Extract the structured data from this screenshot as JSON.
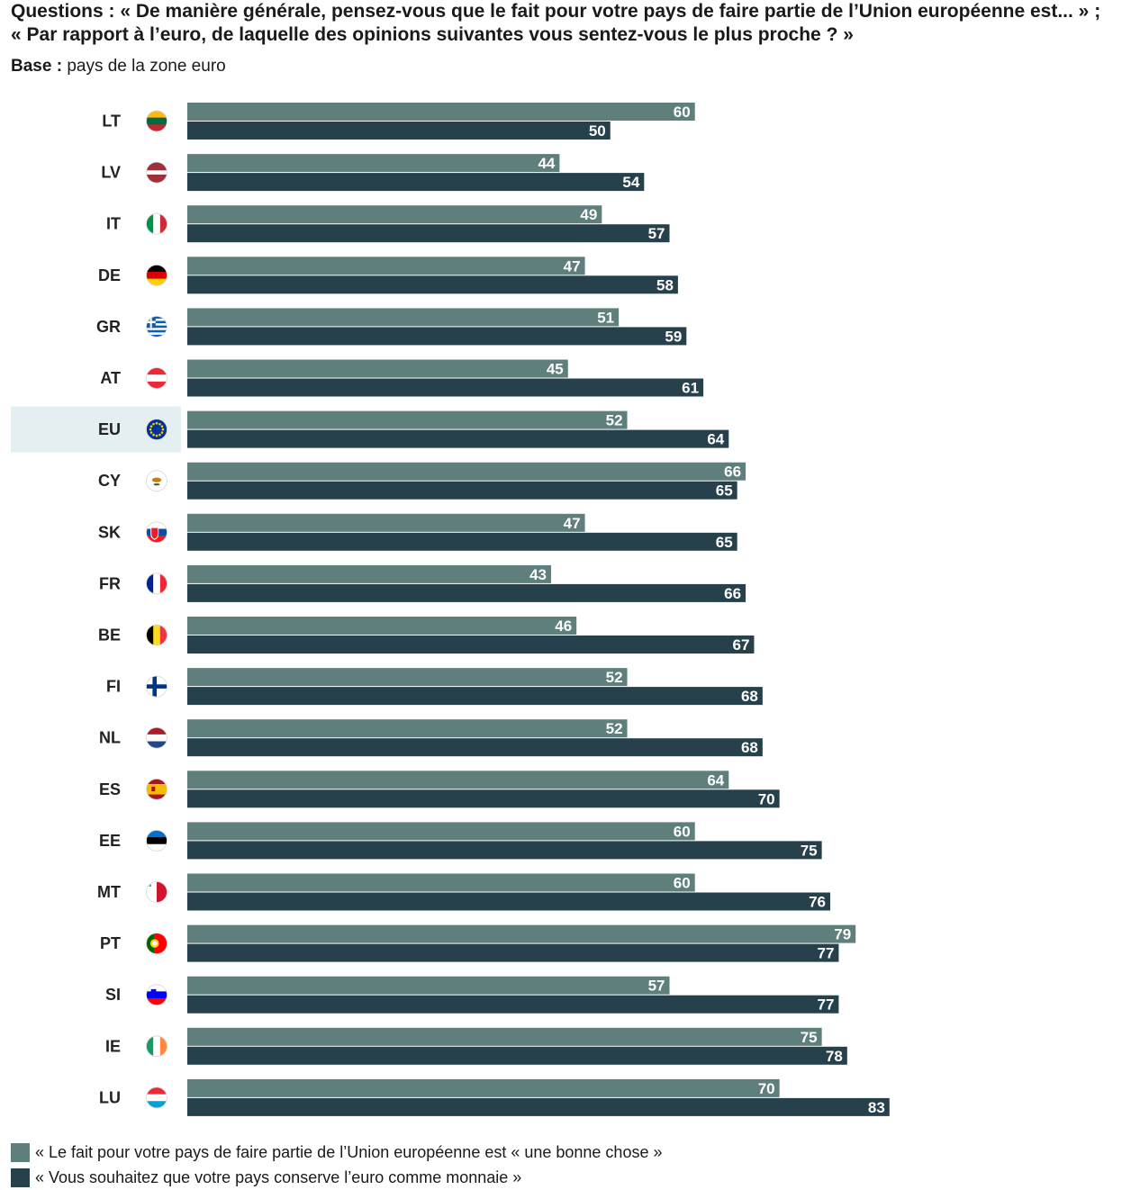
{
  "header": {
    "questions_label": "Questions :",
    "questions_line1": "« De manière générale, pensez-vous que le fait pour votre pays de faire partie de l’Union européenne est... » ;",
    "questions_line2": "« Par rapport à l’euro, de laquelle des opinions suivantes vous sentez-vous le plus proche ? »",
    "base_label": "Base :",
    "base_value": "pays de la zone euro"
  },
  "colors": {
    "series1": "#5e7f7c",
    "series2": "#26414c",
    "highlight_row": "#e4eff1"
  },
  "chart_data": {
    "type": "bar",
    "orientation": "horizontal",
    "categories": [
      "LT",
      "LV",
      "IT",
      "DE",
      "GR",
      "AT",
      "EU",
      "CY",
      "SK",
      "FR",
      "BE",
      "FI",
      "NL",
      "ES",
      "EE",
      "MT",
      "PT",
      "SI",
      "IE",
      "LU"
    ],
    "flags": [
      "lithuania-flag-icon",
      "latvia-flag-icon",
      "italy-flag-icon",
      "germany-flag-icon",
      "greece-flag-icon",
      "austria-flag-icon",
      "eu-flag-icon",
      "cyprus-flag-icon",
      "slovakia-flag-icon",
      "france-flag-icon",
      "belgium-flag-icon",
      "finland-flag-icon",
      "netherlands-flag-icon",
      "spain-flag-icon",
      "estonia-flag-icon",
      "malta-flag-icon",
      "portugal-flag-icon",
      "slovenia-flag-icon",
      "ireland-flag-icon",
      "luxembourg-flag-icon"
    ],
    "highlight": "EU",
    "series": [
      {
        "name": "« Le fait pour votre pays de faire partie de l’Union européenne est « une bonne chose »",
        "values": [
          60,
          44,
          49,
          47,
          51,
          45,
          52,
          66,
          47,
          43,
          46,
          52,
          52,
          64,
          60,
          60,
          79,
          57,
          75,
          70
        ]
      },
      {
        "name": "« Vous souhaitez que votre pays conserve l’euro comme monnaie »",
        "values": [
          50,
          54,
          57,
          58,
          59,
          61,
          64,
          65,
          65,
          66,
          67,
          68,
          68,
          70,
          75,
          76,
          77,
          77,
          78,
          83
        ]
      }
    ],
    "xlim": [
      0,
      100
    ],
    "grid": false,
    "legend_position": "bottom-left"
  }
}
